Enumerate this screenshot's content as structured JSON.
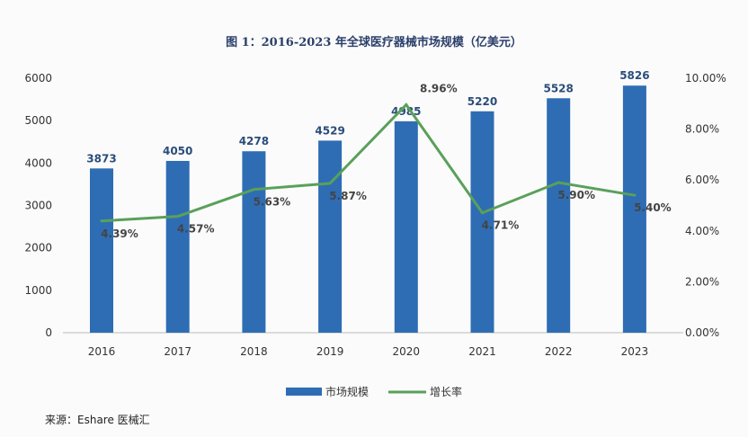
{
  "chart_data": {
    "type": "bar",
    "title": "图 1：2016-2023 年全球医疗器械市场规模（亿美元）",
    "categories": [
      "2016",
      "2017",
      "2018",
      "2019",
      "2020",
      "2021",
      "2022",
      "2023"
    ],
    "series": [
      {
        "name": "市场规模",
        "type": "bar",
        "axis": "left",
        "color": "#2e6db4",
        "values": [
          3873,
          4050,
          4278,
          4529,
          4985,
          5220,
          5528,
          5826
        ],
        "labels": [
          "3873",
          "4050",
          "4278",
          "4529",
          "4985",
          "5220",
          "5528",
          "5826"
        ]
      },
      {
        "name": "增长率",
        "type": "line",
        "axis": "right",
        "color": "#5aa05a",
        "values": [
          4.39,
          4.57,
          5.63,
          5.87,
          8.96,
          4.71,
          5.9,
          5.4
        ],
        "labels": [
          "4.39%",
          "4.57%",
          "5.63%",
          "5.87%",
          "8.96%",
          "4.71%",
          "5.90%",
          "5.40%"
        ]
      }
    ],
    "ylim_left": [
      0,
      6000
    ],
    "yticks_left": [
      "0",
      "1000",
      "2000",
      "3000",
      "4000",
      "5000",
      "6000"
    ],
    "ylim_right": [
      0,
      10
    ],
    "yticks_right": [
      "0.00%",
      "2.00%",
      "4.00%",
      "6.00%",
      "8.00%",
      "10.00%"
    ],
    "legend": "bottom",
    "grid": false
  },
  "source": "来源：Eshare 医械汇"
}
